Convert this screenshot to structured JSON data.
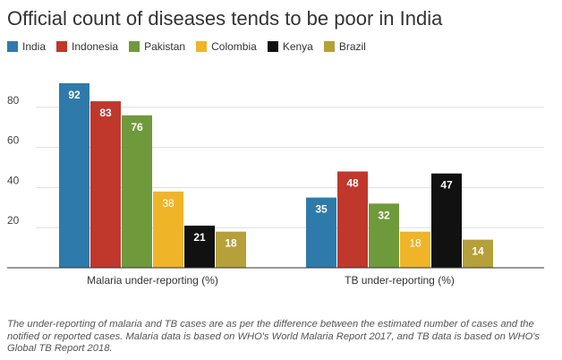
{
  "chart_data": {
    "type": "bar",
    "title": "Official count of diseases tends to be poor in India",
    "categories": [
      "Malaria under-reporting (%)",
      "TB under-reporting (%)"
    ],
    "series": [
      {
        "name": "India",
        "color": "#2e7bab",
        "values": [
          92,
          35
        ]
      },
      {
        "name": "Indonesia",
        "color": "#c0372c",
        "values": [
          83,
          48
        ]
      },
      {
        "name": "Pakistan",
        "color": "#6f9a3b",
        "values": [
          76,
          32
        ]
      },
      {
        "name": "Colombia",
        "color": "#f0b429",
        "values": [
          38,
          18
        ]
      },
      {
        "name": "Kenya",
        "color": "#111111",
        "values": [
          21,
          47
        ]
      },
      {
        "name": "Brazil",
        "color": "#b5a039",
        "values": [
          18,
          14
        ]
      }
    ],
    "yticks": [
      20,
      40,
      60,
      80
    ],
    "ylim": [
      0,
      100
    ],
    "legend": "top-left",
    "grid": true
  },
  "footnote": "The under-reporting of malaria and TB cases are as per the difference between the estimated number of cases and the notified or reported cases. Malaria data is based on WHO's World Malaria Report 2017, and TB data is based on WHO's Global TB Report 2018."
}
